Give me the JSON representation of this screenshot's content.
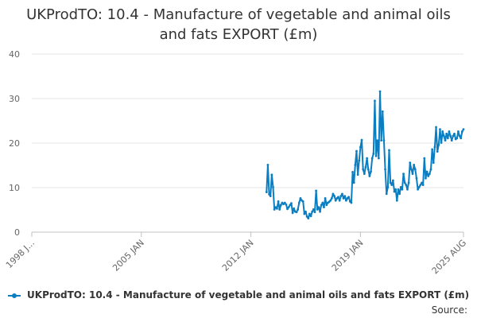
{
  "chart_data": {
    "type": "line",
    "title": "UKProdTO: 10.4 - Manufacture of vegetable and animal oils and fats EXPORT (£m)",
    "xlabel": "",
    "ylabel": "",
    "ylim": [
      0,
      40
    ],
    "y_ticks": [
      0,
      10,
      20,
      30,
      40
    ],
    "x_range": [
      "1998 JAN",
      "2025 AUG"
    ],
    "x_ticks": [
      {
        "label": "1998 J...",
        "date": "1998-01"
      },
      {
        "label": "2005 JAN",
        "date": "2005-01"
      },
      {
        "label": "2012 JAN",
        "date": "2012-01"
      },
      {
        "label": "2019 JAN",
        "date": "2019-01"
      },
      {
        "label": "2025 AUG",
        "date": "2025-08"
      }
    ],
    "grid": "horizontal",
    "legend_position": "bottom",
    "series_color": "#0b7ec2",
    "source_label": "Source:",
    "series": [
      {
        "name": "UKProdTO: 10.4 - Manufacture of vegetable and animal oils and fats EXPORT (£m)",
        "points": [
          [
            "2013-01",
            9.0
          ],
          [
            "2013-02",
            15.1
          ],
          [
            "2013-03",
            8.5
          ],
          [
            "2013-04",
            8.1
          ],
          [
            "2013-05",
            12.9
          ],
          [
            "2013-06",
            10.1
          ],
          [
            "2013-07",
            5.1
          ],
          [
            "2013-08",
            5.6
          ],
          [
            "2013-09",
            5.3
          ],
          [
            "2013-10",
            6.9
          ],
          [
            "2013-11",
            5.1
          ],
          [
            "2013-12",
            6.1
          ],
          [
            "2014-01",
            6.6
          ],
          [
            "2014-02",
            6.3
          ],
          [
            "2014-03",
            6.6
          ],
          [
            "2014-04",
            6.2
          ],
          [
            "2014-05",
            5.2
          ],
          [
            "2014-06",
            5.6
          ],
          [
            "2014-07",
            6.1
          ],
          [
            "2014-08",
            6.5
          ],
          [
            "2014-09",
            4.3
          ],
          [
            "2014-10",
            5.3
          ],
          [
            "2014-11",
            4.6
          ],
          [
            "2014-12",
            4.5
          ],
          [
            "2015-01",
            5.1
          ],
          [
            "2015-02",
            6.6
          ],
          [
            "2015-03",
            7.6
          ],
          [
            "2015-04",
            7.1
          ],
          [
            "2015-05",
            6.9
          ],
          [
            "2015-06",
            4.1
          ],
          [
            "2015-07",
            4.6
          ],
          [
            "2015-08",
            3.5
          ],
          [
            "2015-09",
            3.1
          ],
          [
            "2015-10",
            4.1
          ],
          [
            "2015-11",
            3.6
          ],
          [
            "2015-12",
            4.6
          ],
          [
            "2016-01",
            5.1
          ],
          [
            "2016-02",
            4.5
          ],
          [
            "2016-03",
            9.3
          ],
          [
            "2016-04",
            5.1
          ],
          [
            "2016-05",
            5.6
          ],
          [
            "2016-06",
            4.6
          ],
          [
            "2016-07",
            6.1
          ],
          [
            "2016-08",
            6.6
          ],
          [
            "2016-09",
            5.6
          ],
          [
            "2016-10",
            7.6
          ],
          [
            "2016-11",
            6.1
          ],
          [
            "2016-12",
            6.6
          ],
          [
            "2017-01",
            6.8
          ],
          [
            "2017-02",
            7.1
          ],
          [
            "2017-03",
            7.6
          ],
          [
            "2017-04",
            8.6
          ],
          [
            "2017-05",
            8.1
          ],
          [
            "2017-06",
            7.1
          ],
          [
            "2017-07",
            7.6
          ],
          [
            "2017-08",
            7.9
          ],
          [
            "2017-09",
            7.1
          ],
          [
            "2017-10",
            8.1
          ],
          [
            "2017-11",
            8.6
          ],
          [
            "2017-12",
            7.6
          ],
          [
            "2018-01",
            8.1
          ],
          [
            "2018-02",
            7.1
          ],
          [
            "2018-03",
            7.6
          ],
          [
            "2018-04",
            7.9
          ],
          [
            "2018-05",
            6.9
          ],
          [
            "2018-06",
            6.6
          ],
          [
            "2018-07",
            13.5
          ],
          [
            "2018-08",
            11.1
          ],
          [
            "2018-09",
            15.1
          ],
          [
            "2018-10",
            18.2
          ],
          [
            "2018-11",
            12.9
          ],
          [
            "2018-12",
            16.1
          ],
          [
            "2019-01",
            19.1
          ],
          [
            "2019-02",
            20.7
          ],
          [
            "2019-03",
            14.1
          ],
          [
            "2019-04",
            13.1
          ],
          [
            "2019-05",
            14.6
          ],
          [
            "2019-06",
            16.6
          ],
          [
            "2019-07",
            14.1
          ],
          [
            "2019-08",
            12.6
          ],
          [
            "2019-09",
            13.6
          ],
          [
            "2019-10",
            16.6
          ],
          [
            "2019-11",
            17.6
          ],
          [
            "2019-12",
            29.5
          ],
          [
            "2020-01",
            17.1
          ],
          [
            "2020-02",
            20.6
          ],
          [
            "2020-03",
            16.6
          ],
          [
            "2020-04",
            31.6
          ],
          [
            "2020-05",
            20.6
          ],
          [
            "2020-06",
            27.1
          ],
          [
            "2020-07",
            20.6
          ],
          [
            "2020-08",
            14.1
          ],
          [
            "2020-09",
            8.6
          ],
          [
            "2020-10",
            10.1
          ],
          [
            "2020-11",
            18.4
          ],
          [
            "2020-12",
            11.1
          ],
          [
            "2021-01",
            10.6
          ],
          [
            "2021-02",
            11.6
          ],
          [
            "2021-03",
            9.1
          ],
          [
            "2021-04",
            9.6
          ],
          [
            "2021-05",
            7.1
          ],
          [
            "2021-06",
            9.6
          ],
          [
            "2021-07",
            8.6
          ],
          [
            "2021-08",
            10.1
          ],
          [
            "2021-09",
            9.6
          ],
          [
            "2021-10",
            13.1
          ],
          [
            "2021-11",
            11.1
          ],
          [
            "2021-12",
            10.6
          ],
          [
            "2022-01",
            9.6
          ],
          [
            "2022-02",
            11.1
          ],
          [
            "2022-03",
            15.6
          ],
          [
            "2022-04",
            14.1
          ],
          [
            "2022-05",
            13.1
          ],
          [
            "2022-06",
            15.1
          ],
          [
            "2022-07",
            14.1
          ],
          [
            "2022-08",
            12.1
          ],
          [
            "2022-09",
            9.6
          ],
          [
            "2022-10",
            10.1
          ],
          [
            "2022-11",
            10.6
          ],
          [
            "2022-12",
            11.1
          ],
          [
            "2023-01",
            10.6
          ],
          [
            "2023-02",
            16.6
          ],
          [
            "2023-03",
            12.1
          ],
          [
            "2023-04",
            13.6
          ],
          [
            "2023-05",
            12.6
          ],
          [
            "2023-06",
            13.1
          ],
          [
            "2023-07",
            14.1
          ],
          [
            "2023-08",
            18.6
          ],
          [
            "2023-09",
            15.6
          ],
          [
            "2023-10",
            19.1
          ],
          [
            "2023-11",
            23.6
          ],
          [
            "2023-12",
            18.1
          ],
          [
            "2024-01",
            19.6
          ],
          [
            "2024-02",
            23.1
          ],
          [
            "2024-03",
            20.1
          ],
          [
            "2024-04",
            22.6
          ],
          [
            "2024-05",
            21.6
          ],
          [
            "2024-06",
            20.6
          ],
          [
            "2024-07",
            22.1
          ],
          [
            "2024-08",
            21.1
          ],
          [
            "2024-09",
            22.6
          ],
          [
            "2024-10",
            21.6
          ],
          [
            "2024-11",
            20.6
          ],
          [
            "2024-12",
            21.6
          ],
          [
            "2025-01",
            22.1
          ],
          [
            "2025-02",
            20.9
          ],
          [
            "2025-03",
            21.1
          ],
          [
            "2025-04",
            22.6
          ],
          [
            "2025-05",
            21.6
          ],
          [
            "2025-06",
            21.1
          ],
          [
            "2025-07",
            22.6
          ],
          [
            "2025-08",
            23.1
          ]
        ]
      }
    ]
  }
}
